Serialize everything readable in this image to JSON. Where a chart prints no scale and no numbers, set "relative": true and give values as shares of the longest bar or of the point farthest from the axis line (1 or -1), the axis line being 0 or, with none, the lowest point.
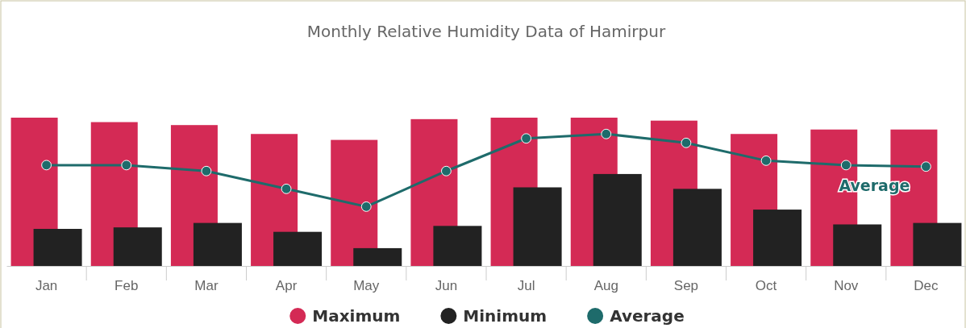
{
  "chart_data": {
    "type": "bar",
    "title": "Monthly Relative Humidity Data of Hamirpur",
    "relative": true,
    "categories": [
      "Jan",
      "Feb",
      "Mar",
      "Apr",
      "May",
      "Jun",
      "Jul",
      "Aug",
      "Sep",
      "Oct",
      "Nov",
      "Dec"
    ],
    "series": [
      {
        "name": "Maximum",
        "color": "#d42a55",
        "values": [
          1,
          0.97,
          0.95,
          0.89,
          0.85,
          0.99,
          1,
          1,
          0.98,
          0.89,
          0.92,
          0.92
        ]
      },
      {
        "name": "Minimum",
        "color": "#222222",
        "values": [
          0.25,
          0.26,
          0.29,
          0.23,
          0.12,
          0.27,
          0.53,
          0.62,
          0.52,
          0.38,
          0.28,
          0.29
        ]
      },
      {
        "name": "Average",
        "type": "line",
        "color": "#1e6b6b",
        "marker": "circle",
        "line_style": "solid",
        "values": [
          0.68,
          0.68,
          0.64,
          0.52,
          0.4,
          0.64,
          0.86,
          0.89,
          0.83,
          0.71,
          0.68,
          0.67
        ]
      }
    ],
    "legend": "bottom"
  }
}
